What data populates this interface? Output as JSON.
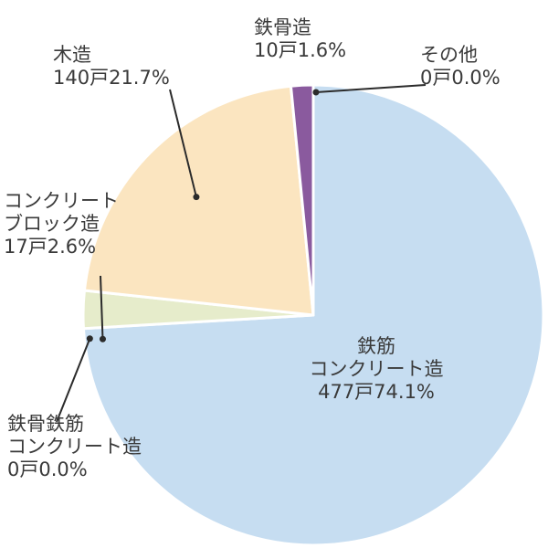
{
  "chart_data": {
    "type": "pie",
    "slices": [
      {
        "id": "rc",
        "lines": [
          "鉄筋",
          "コンクリート造"
        ],
        "count_label": "477戸74.1%",
        "value": 477,
        "percent": 74.1,
        "color": "#c6ddf1"
      },
      {
        "id": "src",
        "lines": [
          "鉄骨鉄筋",
          "コンクリート造"
        ],
        "count_label": "0戸0.0%",
        "value": 0,
        "percent": 0.0,
        "color": "#ffffff"
      },
      {
        "id": "block",
        "lines": [
          "コンクリート",
          "ブロック造"
        ],
        "count_label": "17戸2.6%",
        "value": 17,
        "percent": 2.6,
        "color": "#e6eccb"
      },
      {
        "id": "wood",
        "lines": [
          "木造"
        ],
        "count_label": "140戸21.7%",
        "value": 140,
        "percent": 21.7,
        "color": "#fbe5c0"
      },
      {
        "id": "steel",
        "lines": [
          "鉄骨造"
        ],
        "count_label": "10戸1.6%",
        "value": 10,
        "percent": 1.6,
        "color": "#8a5a9e"
      },
      {
        "id": "other",
        "lines": [
          "その他"
        ],
        "count_label": "0戸0.0%",
        "value": 0,
        "percent": 0.0,
        "color": "#ffffff"
      }
    ],
    "legend": "none",
    "leader_line_color": "#2b2b2b"
  }
}
